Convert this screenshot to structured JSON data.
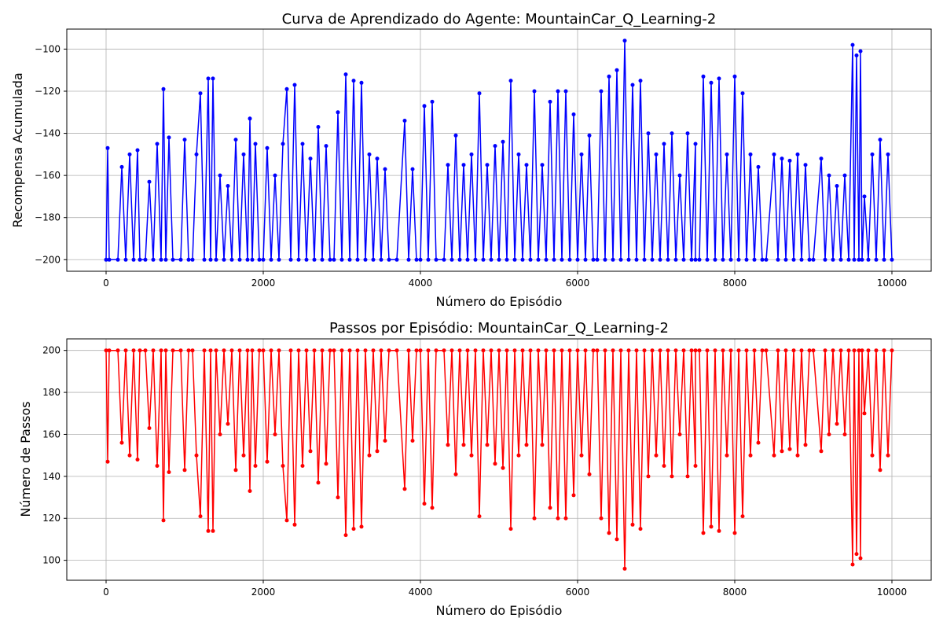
{
  "chart_data": [
    {
      "type": "line",
      "title": "Curva de Aprendizado do Agente: MountainCar_Q_Learning-2",
      "xlabel": "Número do Episódio",
      "ylabel": "Recompensa Acumulada",
      "xlim": [
        -500,
        10500
      ],
      "ylim": [
        -205.5,
        -90.5
      ],
      "xticks": [
        0,
        2000,
        4000,
        6000,
        8000,
        10000
      ],
      "yticks": [
        -200,
        -180,
        -160,
        -140,
        -120,
        -100
      ],
      "xtick_labels": [
        "0",
        "2000",
        "4000",
        "6000",
        "8000",
        "10000"
      ],
      "ytick_labels": [
        "−200",
        "−180",
        "−160",
        "−140",
        "−120",
        "−100"
      ],
      "grid": true,
      "marker": "circle",
      "color": "#0000ff",
      "series": [
        {
          "x": [
            0,
            20,
            40,
            150,
            200,
            250,
            300,
            350,
            400,
            430,
            500,
            550,
            600,
            650,
            700,
            730,
            760,
            800,
            850,
            950,
            1000,
            1050,
            1100,
            1150,
            1200,
            1250,
            1300,
            1330,
            1360,
            1400,
            1450,
            1500,
            1550,
            1600,
            1650,
            1700,
            1750,
            1800,
            1830,
            1860,
            1900,
            1950,
            2000,
            2050,
            2100,
            2150,
            2200,
            2250,
            2300,
            2350,
            2400,
            2450,
            2500,
            2550,
            2600,
            2650,
            2700,
            2750,
            2800,
            2850,
            2900,
            2950,
            3000,
            3050,
            3100,
            3150,
            3200,
            3250,
            3300,
            3350,
            3400,
            3450,
            3500,
            3550,
            3600,
            3700,
            3800,
            3850,
            3900,
            3950,
            4000,
            4050,
            4100,
            4150,
            4200,
            4300,
            4350,
            4400,
            4450,
            4500,
            4550,
            4600,
            4650,
            4700,
            4750,
            4800,
            4850,
            4900,
            4950,
            5000,
            5050,
            5100,
            5150,
            5200,
            5250,
            5300,
            5350,
            5400,
            5450,
            5500,
            5550,
            5600,
            5650,
            5700,
            5750,
            5800,
            5850,
            5900,
            5950,
            6000,
            6050,
            6100,
            6150,
            6200,
            6250,
            6300,
            6350,
            6400,
            6450,
            6500,
            6550,
            6600,
            6650,
            6700,
            6750,
            6800,
            6850,
            6900,
            6950,
            7000,
            7050,
            7100,
            7150,
            7200,
            7250,
            7300,
            7350,
            7400,
            7450,
            7500,
            7500,
            7550,
            7600,
            7650,
            7700,
            7750,
            7800,
            7850,
            7900,
            7950,
            8000,
            8050,
            8100,
            8150,
            8200,
            8250,
            8300,
            8350,
            8400,
            8500,
            8550,
            8600,
            8650,
            8700,
            8750,
            8800,
            8850,
            8900,
            8950,
            9000,
            9100,
            9150,
            9200,
            9250,
            9300,
            9350,
            9400,
            9450,
            9500,
            9520,
            9550,
            9580,
            9600,
            9620,
            9650,
            9700,
            9750,
            9800,
            9850,
            9900,
            9950,
            10000
          ],
          "y": [
            -200,
            -147,
            -200,
            -200,
            -156,
            -200,
            -150,
            -200,
            -148,
            -200,
            -200,
            -163,
            -200,
            -145,
            -200,
            -119,
            -200,
            -142,
            -200,
            -200,
            -143,
            -200,
            -200,
            -150,
            -121,
            -200,
            -114,
            -200,
            -114,
            -200,
            -160,
            -200,
            -165,
            -200,
            -143,
            -200,
            -150,
            -200,
            -133,
            -200,
            -145,
            -200,
            -200,
            -147,
            -200,
            -160,
            -200,
            -145,
            -119,
            -200,
            -117,
            -200,
            -145,
            -200,
            -152,
            -200,
            -137,
            -200,
            -146,
            -200,
            -200,
            -130,
            -200,
            -112,
            -200,
            -115,
            -200,
            -116,
            -200,
            -150,
            -200,
            -152,
            -200,
            -157,
            -200,
            -200,
            -134,
            -200,
            -157,
            -200,
            -200,
            -127,
            -200,
            -125,
            -200,
            -200,
            -155,
            -200,
            -141,
            -200,
            -155,
            -200,
            -150,
            -200,
            -121,
            -200,
            -155,
            -200,
            -146,
            -200,
            -144,
            -200,
            -115,
            -200,
            -150,
            -200,
            -155,
            -200,
            -120,
            -200,
            -155,
            -200,
            -125,
            -200,
            -120,
            -200,
            -120,
            -200,
            -131,
            -200,
            -150,
            -200,
            -141,
            -200,
            -200,
            -120,
            -200,
            -113,
            -200,
            -110,
            -200,
            -96,
            -200,
            -117,
            -200,
            -115,
            -200,
            -140,
            -200,
            -150,
            -200,
            -145,
            -200,
            -140,
            -200,
            -160,
            -200,
            -140,
            -200,
            -145,
            -200,
            -200,
            -113,
            -200,
            -116,
            -200,
            -114,
            -200,
            -150,
            -200,
            -113,
            -200,
            -121,
            -200,
            -150,
            -200,
            -156,
            -200,
            -200,
            -150,
            -200,
            -152,
            -200,
            -153,
            -200,
            -150,
            -200,
            -155,
            -200,
            -200,
            -152,
            -200,
            -160,
            -200,
            -165,
            -200,
            -160,
            -200,
            -98,
            -200,
            -103,
            -200,
            -101,
            -200,
            -170,
            -200,
            -150,
            -200,
            -143,
            -200,
            -150,
            -200
          ]
        }
      ]
    },
    {
      "type": "line",
      "title": "Passos por Episódio: MountainCar_Q_Learning-2",
      "xlabel": "Número do Episódio",
      "ylabel": "Número de Passos",
      "xlim": [
        -500,
        10500
      ],
      "ylim": [
        90.5,
        205.5
      ],
      "xticks": [
        0,
        2000,
        4000,
        6000,
        8000,
        10000
      ],
      "yticks": [
        100,
        120,
        140,
        160,
        180,
        200
      ],
      "xtick_labels": [
        "0",
        "2000",
        "4000",
        "6000",
        "8000",
        "10000"
      ],
      "ytick_labels": [
        "100",
        "120",
        "140",
        "160",
        "180",
        "200"
      ],
      "grid": true,
      "marker": "circle",
      "color": "#ff0000",
      "series": [
        {
          "x": [
            0,
            20,
            40,
            150,
            200,
            250,
            300,
            350,
            400,
            430,
            500,
            550,
            600,
            650,
            700,
            730,
            760,
            800,
            850,
            950,
            1000,
            1050,
            1100,
            1150,
            1200,
            1250,
            1300,
            1330,
            1360,
            1400,
            1450,
            1500,
            1550,
            1600,
            1650,
            1700,
            1750,
            1800,
            1830,
            1860,
            1900,
            1950,
            2000,
            2050,
            2100,
            2150,
            2200,
            2250,
            2300,
            2350,
            2400,
            2450,
            2500,
            2550,
            2600,
            2650,
            2700,
            2750,
            2800,
            2850,
            2900,
            2950,
            3000,
            3050,
            3100,
            3150,
            3200,
            3250,
            3300,
            3350,
            3400,
            3450,
            3500,
            3550,
            3600,
            3700,
            3800,
            3850,
            3900,
            3950,
            4000,
            4050,
            4100,
            4150,
            4200,
            4300,
            4350,
            4400,
            4450,
            4500,
            4550,
            4600,
            4650,
            4700,
            4750,
            4800,
            4850,
            4900,
            4950,
            5000,
            5050,
            5100,
            5150,
            5200,
            5250,
            5300,
            5350,
            5400,
            5450,
            5500,
            5550,
            5600,
            5650,
            5700,
            5750,
            5800,
            5850,
            5900,
            5950,
            6000,
            6050,
            6100,
            6150,
            6200,
            6250,
            6300,
            6350,
            6400,
            6450,
            6500,
            6550,
            6600,
            6650,
            6700,
            6750,
            6800,
            6850,
            6900,
            6950,
            7000,
            7050,
            7100,
            7150,
            7200,
            7250,
            7300,
            7350,
            7400,
            7450,
            7500,
            7500,
            7550,
            7600,
            7650,
            7700,
            7750,
            7800,
            7850,
            7900,
            7950,
            8000,
            8050,
            8100,
            8150,
            8200,
            8250,
            8300,
            8350,
            8400,
            8500,
            8550,
            8600,
            8650,
            8700,
            8750,
            8800,
            8850,
            8900,
            8950,
            9000,
            9100,
            9150,
            9200,
            9250,
            9300,
            9350,
            9400,
            9450,
            9500,
            9520,
            9550,
            9580,
            9600,
            9620,
            9650,
            9700,
            9750,
            9800,
            9850,
            9900,
            9950,
            10000
          ],
          "y": [
            200,
            147,
            200,
            200,
            156,
            200,
            150,
            200,
            148,
            200,
            200,
            163,
            200,
            145,
            200,
            119,
            200,
            142,
            200,
            200,
            143,
            200,
            200,
            150,
            121,
            200,
            114,
            200,
            114,
            200,
            160,
            200,
            165,
            200,
            143,
            200,
            150,
            200,
            133,
            200,
            145,
            200,
            200,
            147,
            200,
            160,
            200,
            145,
            119,
            200,
            117,
            200,
            145,
            200,
            152,
            200,
            137,
            200,
            146,
            200,
            200,
            130,
            200,
            112,
            200,
            115,
            200,
            116,
            200,
            150,
            200,
            152,
            200,
            157,
            200,
            200,
            134,
            200,
            157,
            200,
            200,
            127,
            200,
            125,
            200,
            200,
            155,
            200,
            141,
            200,
            155,
            200,
            150,
            200,
            121,
            200,
            155,
            200,
            146,
            200,
            144,
            200,
            115,
            200,
            150,
            200,
            155,
            200,
            120,
            200,
            155,
            200,
            125,
            200,
            120,
            200,
            120,
            200,
            131,
            200,
            150,
            200,
            141,
            200,
            200,
            120,
            200,
            113,
            200,
            110,
            200,
            96,
            200,
            117,
            200,
            115,
            200,
            140,
            200,
            150,
            200,
            145,
            200,
            140,
            200,
            160,
            200,
            140,
            200,
            145,
            200,
            200,
            113,
            200,
            116,
            200,
            114,
            200,
            150,
            200,
            113,
            200,
            121,
            200,
            150,
            200,
            156,
            200,
            200,
            150,
            200,
            152,
            200,
            153,
            200,
            150,
            200,
            155,
            200,
            200,
            152,
            200,
            160,
            200,
            165,
            200,
            160,
            200,
            98,
            200,
            103,
            200,
            101,
            200,
            170,
            200,
            150,
            200,
            143,
            200,
            150,
            200
          ]
        }
      ]
    }
  ]
}
